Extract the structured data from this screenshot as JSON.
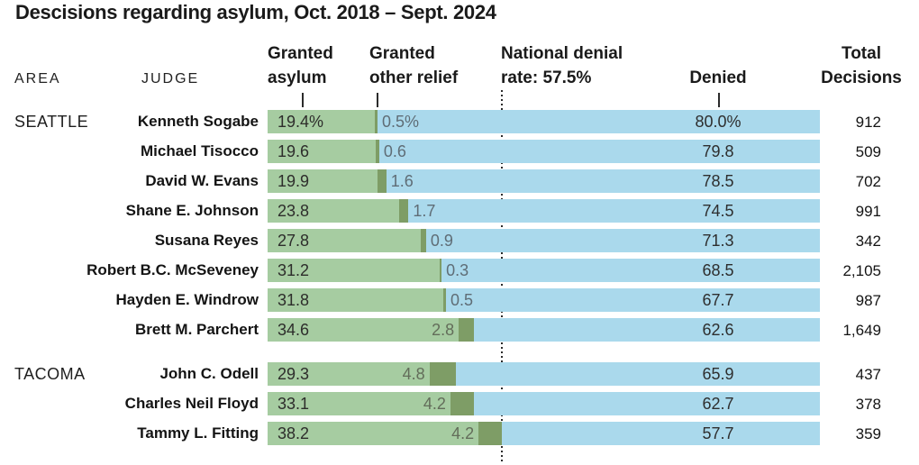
{
  "title": "Descisions regarding asylum, Oct. 2018 – Sept. 2024",
  "header": {
    "area": "AREA",
    "judge": "JUDGE",
    "granted_asylum": [
      "Granted",
      "asylum"
    ],
    "granted_other": [
      "Granted",
      "other relief"
    ],
    "national_denial": [
      "National denial",
      "rate: 57.5%"
    ],
    "denied": "Denied",
    "total": [
      "Total",
      "Decisions"
    ]
  },
  "colors": {
    "granted_asylum_bar": "#a6cca1",
    "granted_other_bar": "#7e9d66",
    "denied_bar": "#aad9ec",
    "asylum_label_text": "#2d2d2b",
    "other_label_on_blue": "#5f6d76",
    "other_label_on_green": "#636d5a",
    "denied_label_text": "#2e2e2e"
  },
  "chart_data": {
    "type": "bar",
    "orientation": "horizontal",
    "stacked": true,
    "unit": "percent",
    "title": "Descisions regarding asylum, Oct. 2018 – Sept. 2024",
    "series_names": [
      "Granted asylum",
      "Granted other relief",
      "Denied"
    ],
    "x_range": [
      0,
      100
    ],
    "reference_line": {
      "label": "National denial rate: 57.5%",
      "denied_pct": 57.5
    },
    "groups": [
      {
        "area": "SEATTLE",
        "rows": [
          {
            "judge": "Kenneth Sogabe",
            "granted_asylum": 19.4,
            "granted_other": 0.5,
            "denied": 80.0,
            "total": "912",
            "labels": {
              "asylum": "19.4%",
              "other": "0.5%",
              "denied": "80.0%"
            },
            "other_label_side": "right"
          },
          {
            "judge": "Michael Tisocco",
            "granted_asylum": 19.6,
            "granted_other": 0.6,
            "denied": 79.8,
            "total": "509",
            "labels": {
              "asylum": "19.6",
              "other": "0.6",
              "denied": "79.8"
            },
            "other_label_side": "right"
          },
          {
            "judge": "David W. Evans",
            "granted_asylum": 19.9,
            "granted_other": 1.6,
            "denied": 78.5,
            "total": "702",
            "labels": {
              "asylum": "19.9",
              "other": "1.6",
              "denied": "78.5"
            },
            "other_label_side": "right"
          },
          {
            "judge": "Shane E. Johnson",
            "granted_asylum": 23.8,
            "granted_other": 1.7,
            "denied": 74.5,
            "total": "991",
            "labels": {
              "asylum": "23.8",
              "other": "1.7",
              "denied": "74.5"
            },
            "other_label_side": "right"
          },
          {
            "judge": "Susana Reyes",
            "granted_asylum": 27.8,
            "granted_other": 0.9,
            "denied": 71.3,
            "total": "342",
            "labels": {
              "asylum": "27.8",
              "other": "0.9",
              "denied": "71.3"
            },
            "other_label_side": "right"
          },
          {
            "judge": "Robert B.C. McSeveney",
            "granted_asylum": 31.2,
            "granted_other": 0.3,
            "denied": 68.5,
            "total": "2,105",
            "labels": {
              "asylum": "31.2",
              "other": "0.3",
              "denied": "68.5"
            },
            "other_label_side": "right"
          },
          {
            "judge": "Hayden E. Windrow",
            "granted_asylum": 31.8,
            "granted_other": 0.5,
            "denied": 67.7,
            "total": "987",
            "labels": {
              "asylum": "31.8",
              "other": "0.5",
              "denied": "67.7"
            },
            "other_label_side": "right"
          },
          {
            "judge": "Brett M. Parchert",
            "granted_asylum": 34.6,
            "granted_other": 2.8,
            "denied": 62.6,
            "total": "1,649",
            "labels": {
              "asylum": "34.6",
              "other": "2.8",
              "denied": "62.6"
            },
            "other_label_side": "left"
          }
        ]
      },
      {
        "area": "TACOMA",
        "rows": [
          {
            "judge": "John C. Odell",
            "granted_asylum": 29.3,
            "granted_other": 4.8,
            "denied": 65.9,
            "total": "437",
            "labels": {
              "asylum": "29.3",
              "other": "4.8",
              "denied": "65.9"
            },
            "other_label_side": "left"
          },
          {
            "judge": "Charles Neil Floyd",
            "granted_asylum": 33.1,
            "granted_other": 4.2,
            "denied": 62.7,
            "total": "378",
            "labels": {
              "asylum": "33.1",
              "other": "4.2",
              "denied": "62.7"
            },
            "other_label_side": "left"
          },
          {
            "judge": "Tammy L. Fitting",
            "granted_asylum": 38.2,
            "granted_other": 4.2,
            "denied": 57.7,
            "total": "359",
            "labels": {
              "asylum": "38.2",
              "other": "4.2",
              "denied": "57.7"
            },
            "other_label_side": "left"
          }
        ]
      }
    ]
  }
}
